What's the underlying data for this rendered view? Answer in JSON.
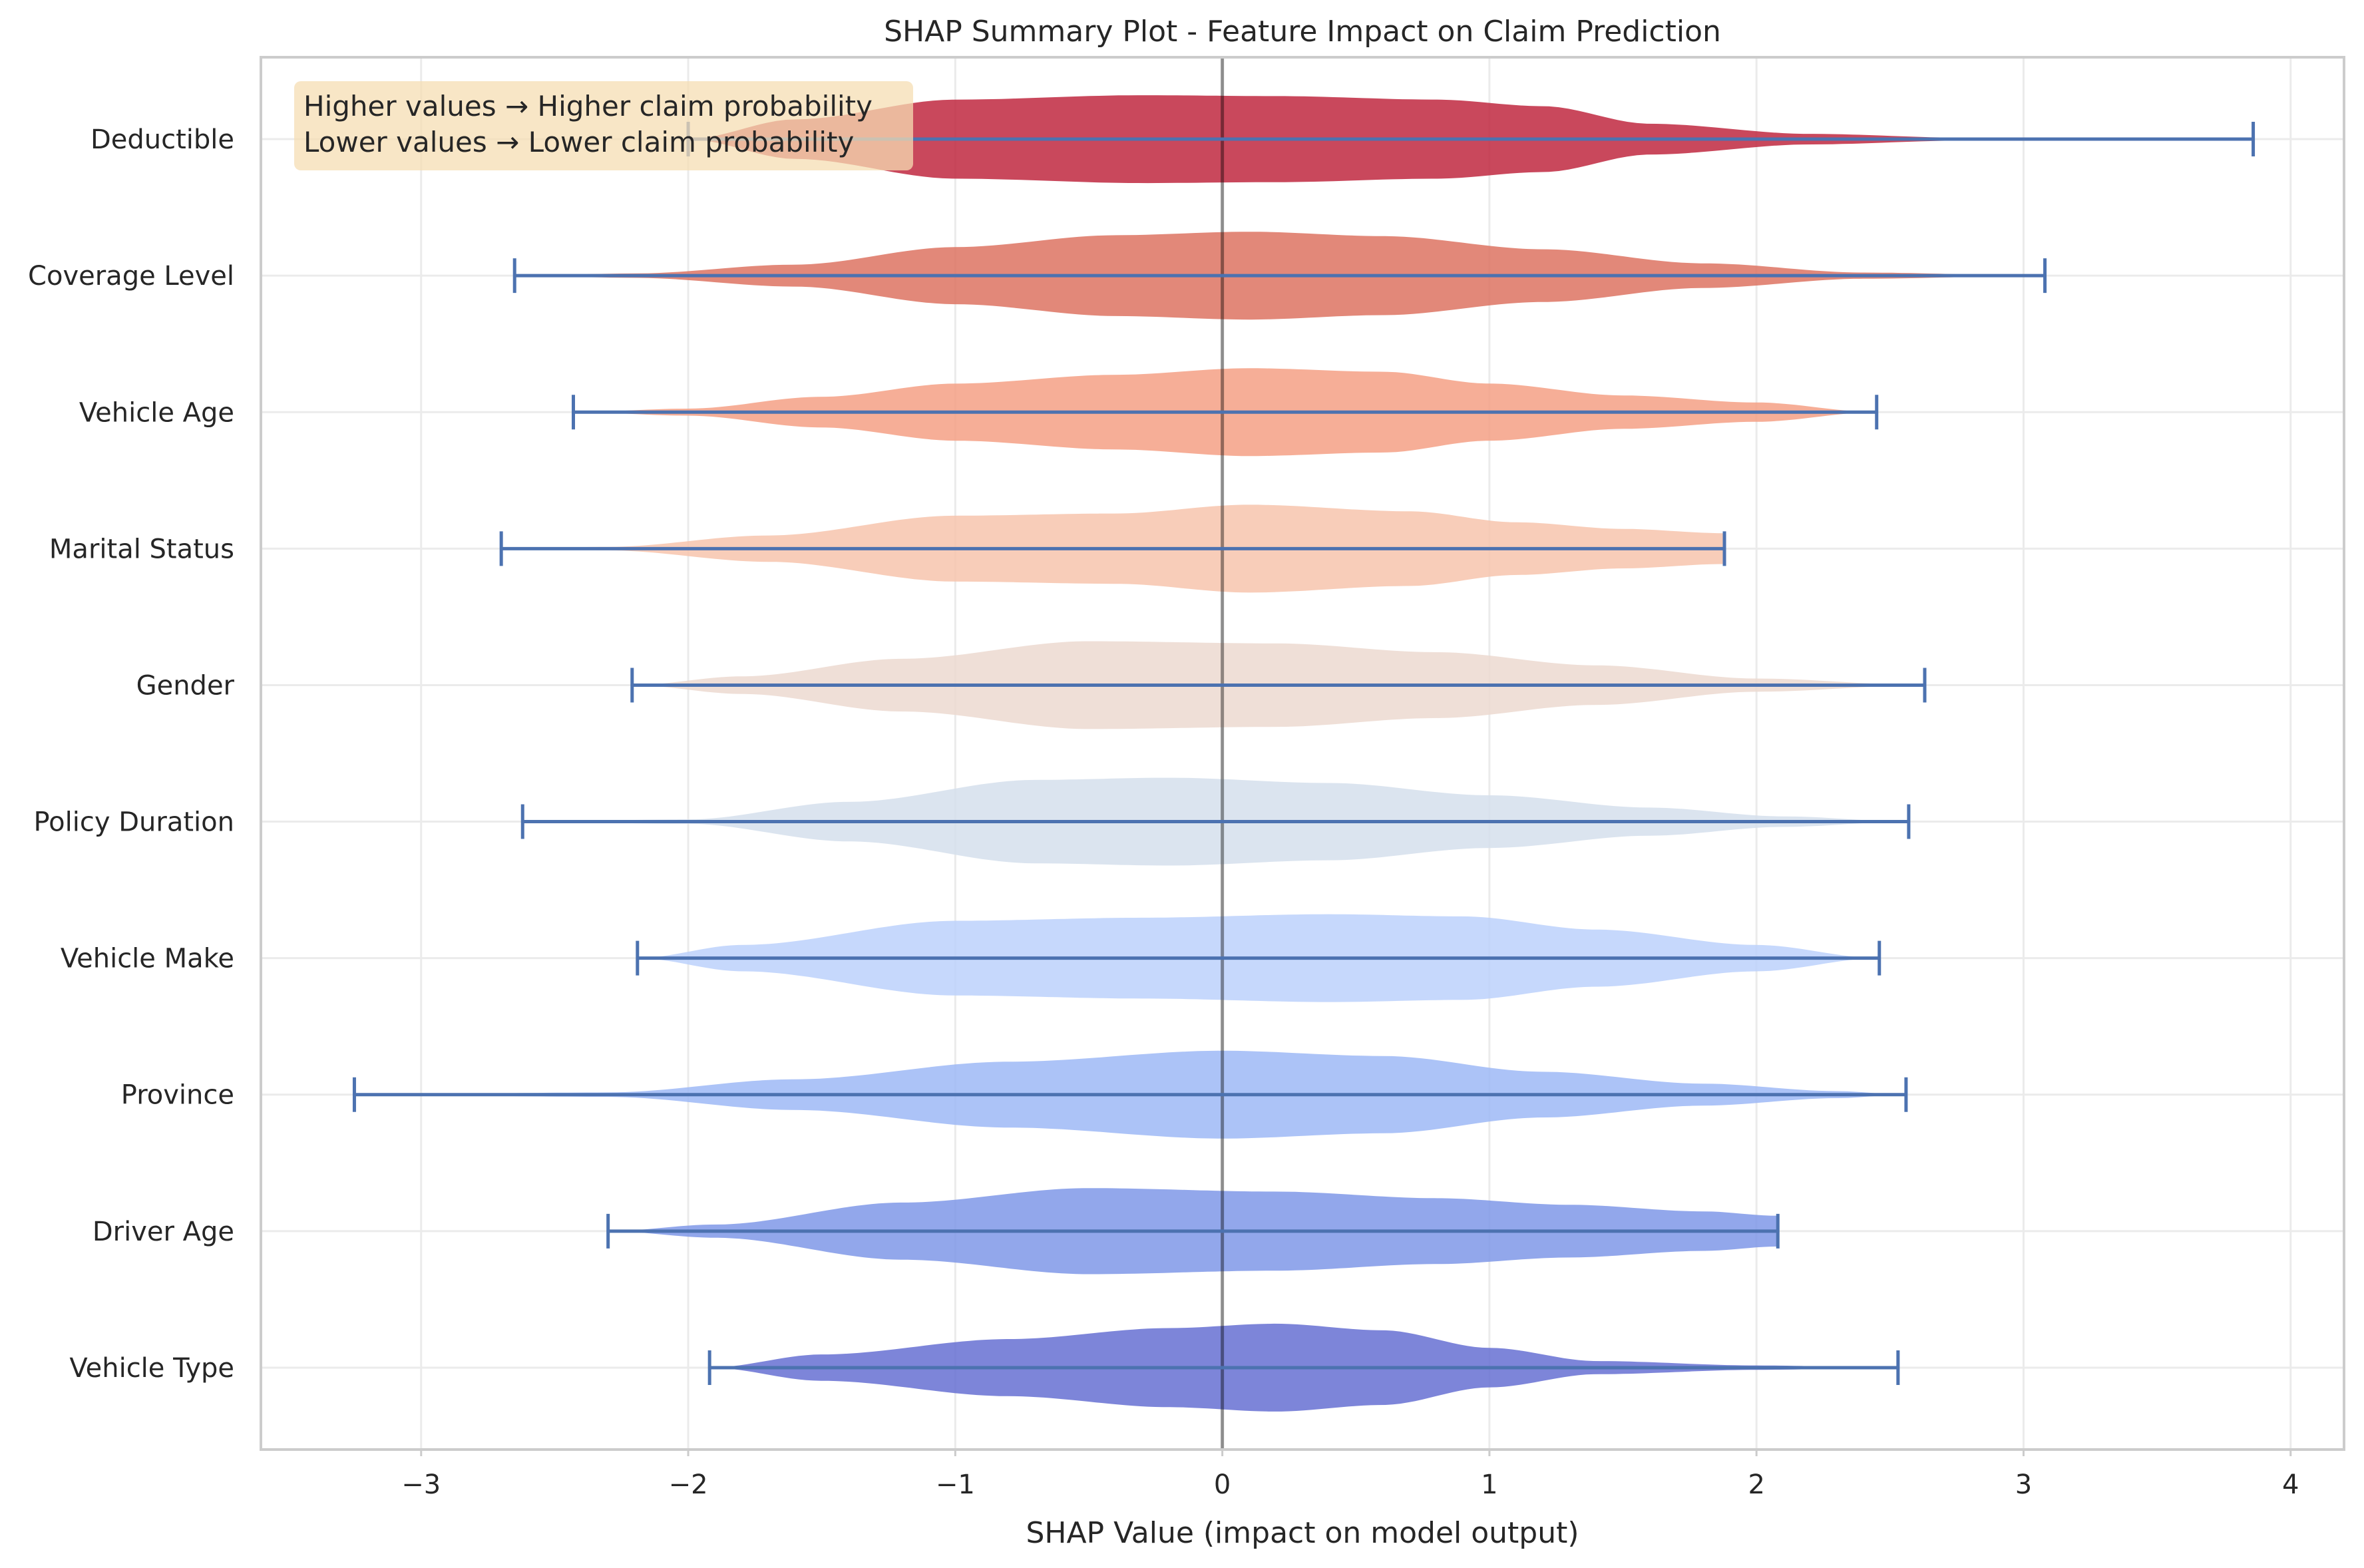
{
  "chart_data": {
    "type": "violin",
    "title": "SHAP Summary Plot - Feature Impact on Claim Prediction",
    "xlabel": "SHAP Value (impact on model output)",
    "ylabel": "",
    "xlim": [
      -3.6,
      4.2
    ],
    "xticks": [
      {
        "value": -3,
        "label": "−3"
      },
      {
        "value": -2,
        "label": "−2"
      },
      {
        "value": -1,
        "label": "−1"
      },
      {
        "value": 0,
        "label": "0"
      },
      {
        "value": 1,
        "label": "1"
      },
      {
        "value": 2,
        "label": "2"
      },
      {
        "value": 3,
        "label": "3"
      },
      {
        "value": 4,
        "label": "4"
      }
    ],
    "grid": true,
    "zero_line": 0,
    "annotation": {
      "lines": [
        "Higher values → Higher claim probability",
        "Lower values → Lower claim probability"
      ],
      "placement": "top-left",
      "background": "#f5deb3"
    },
    "whisker_color": "#4c72b0",
    "features": [
      {
        "name": "Deductible",
        "color": "#c0283f",
        "min": -2.0,
        "max": 3.86,
        "profile": [
          [
            -2.0,
            0.0
          ],
          [
            -1.6,
            0.45
          ],
          [
            -1.0,
            0.9
          ],
          [
            -0.3,
            1.0
          ],
          [
            0.2,
            0.98
          ],
          [
            0.8,
            0.9
          ],
          [
            1.2,
            0.75
          ],
          [
            1.6,
            0.35
          ],
          [
            2.2,
            0.12
          ],
          [
            2.8,
            0.03
          ],
          [
            3.86,
            0.0
          ]
        ]
      },
      {
        "name": "Coverage Level",
        "color": "#dd7361",
        "min": -2.65,
        "max": 3.08,
        "profile": [
          [
            -2.65,
            0.0
          ],
          [
            -2.2,
            0.05
          ],
          [
            -1.6,
            0.25
          ],
          [
            -1.0,
            0.65
          ],
          [
            -0.4,
            0.92
          ],
          [
            0.1,
            1.0
          ],
          [
            0.6,
            0.9
          ],
          [
            1.2,
            0.6
          ],
          [
            1.8,
            0.28
          ],
          [
            2.4,
            0.07
          ],
          [
            3.08,
            0.0
          ]
        ]
      },
      {
        "name": "Vehicle Age",
        "color": "#f4a085",
        "min": -2.43,
        "max": 2.45,
        "profile": [
          [
            -2.43,
            0.0
          ],
          [
            -2.0,
            0.08
          ],
          [
            -1.5,
            0.35
          ],
          [
            -1.0,
            0.65
          ],
          [
            -0.4,
            0.85
          ],
          [
            0.1,
            1.0
          ],
          [
            0.6,
            0.92
          ],
          [
            1.0,
            0.65
          ],
          [
            1.5,
            0.38
          ],
          [
            2.0,
            0.22
          ],
          [
            2.45,
            0.0
          ]
        ]
      },
      {
        "name": "Marital Status",
        "color": "#f7c4ad",
        "min": -2.7,
        "max": 1.88,
        "profile": [
          [
            -2.7,
            0.0
          ],
          [
            -2.3,
            0.04
          ],
          [
            -1.7,
            0.3
          ],
          [
            -1.0,
            0.75
          ],
          [
            -0.4,
            0.8
          ],
          [
            0.1,
            1.0
          ],
          [
            0.7,
            0.85
          ],
          [
            1.1,
            0.6
          ],
          [
            1.5,
            0.45
          ],
          [
            1.88,
            0.35
          ]
        ]
      },
      {
        "name": "Gender",
        "color": "#ecd9d0",
        "min": -2.21,
        "max": 2.63,
        "profile": [
          [
            -2.21,
            0.0
          ],
          [
            -1.8,
            0.2
          ],
          [
            -1.2,
            0.6
          ],
          [
            -0.5,
            1.0
          ],
          [
            0.2,
            0.95
          ],
          [
            0.8,
            0.75
          ],
          [
            1.4,
            0.45
          ],
          [
            2.0,
            0.15
          ],
          [
            2.63,
            0.0
          ]
        ]
      },
      {
        "name": "Policy Duration",
        "color": "#d5dfec",
        "min": -2.62,
        "max": 2.57,
        "profile": [
          [
            -2.62,
            0.0
          ],
          [
            -2.0,
            0.05
          ],
          [
            -1.4,
            0.45
          ],
          [
            -0.7,
            0.95
          ],
          [
            -0.2,
            1.0
          ],
          [
            0.4,
            0.88
          ],
          [
            1.0,
            0.6
          ],
          [
            1.6,
            0.32
          ],
          [
            2.1,
            0.12
          ],
          [
            2.57,
            0.0
          ]
        ]
      },
      {
        "name": "Vehicle Make",
        "color": "#bcd1fb",
        "min": -2.19,
        "max": 2.46,
        "profile": [
          [
            -2.19,
            0.0
          ],
          [
            -1.8,
            0.3
          ],
          [
            -1.0,
            0.85
          ],
          [
            -0.3,
            0.92
          ],
          [
            0.4,
            1.0
          ],
          [
            0.9,
            0.95
          ],
          [
            1.4,
            0.65
          ],
          [
            2.0,
            0.3
          ],
          [
            2.46,
            0.0
          ]
        ]
      },
      {
        "name": "Province",
        "color": "#9db9f6",
        "min": -3.25,
        "max": 2.56,
        "profile": [
          [
            -3.25,
            0.0
          ],
          [
            -2.3,
            0.05
          ],
          [
            -1.6,
            0.35
          ],
          [
            -0.8,
            0.75
          ],
          [
            0.0,
            1.0
          ],
          [
            0.6,
            0.88
          ],
          [
            1.2,
            0.52
          ],
          [
            1.8,
            0.25
          ],
          [
            2.3,
            0.08
          ],
          [
            2.56,
            0.0
          ]
        ]
      },
      {
        "name": "Driver Age",
        "color": "#7f98e8",
        "min": -2.3,
        "max": 2.08,
        "profile": [
          [
            -2.3,
            0.0
          ],
          [
            -1.9,
            0.15
          ],
          [
            -1.2,
            0.65
          ],
          [
            -0.5,
            0.98
          ],
          [
            0.2,
            0.9
          ],
          [
            0.8,
            0.75
          ],
          [
            1.3,
            0.6
          ],
          [
            1.8,
            0.45
          ],
          [
            2.08,
            0.35
          ]
        ]
      },
      {
        "name": "Vehicle Type",
        "color": "#6670d2",
        "min": -1.92,
        "max": 2.53,
        "profile": [
          [
            -1.92,
            0.0
          ],
          [
            -1.5,
            0.3
          ],
          [
            -0.8,
            0.65
          ],
          [
            -0.2,
            0.9
          ],
          [
            0.2,
            1.0
          ],
          [
            0.6,
            0.85
          ],
          [
            1.0,
            0.45
          ],
          [
            1.4,
            0.15
          ],
          [
            2.0,
            0.05
          ],
          [
            2.53,
            0.0
          ]
        ]
      }
    ]
  }
}
